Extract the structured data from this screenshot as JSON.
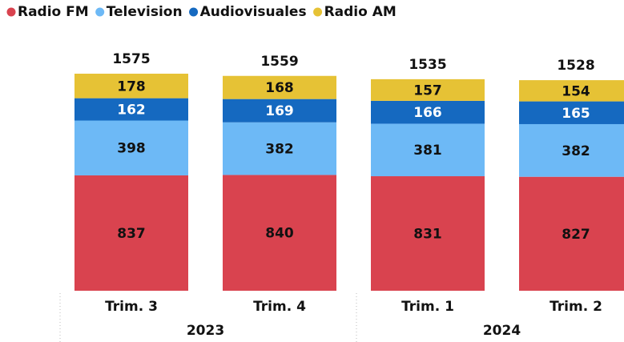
{
  "chart_data": {
    "type": "stacked_bar",
    "categories": [
      "Trim. 3",
      "Trim. 4",
      "Trim. 1",
      "Trim. 2"
    ],
    "groups": [
      "2023",
      "2024"
    ],
    "series": [
      {
        "name": "Radio FM",
        "color": "#d9434f",
        "values": [
          837,
          840,
          831,
          827
        ]
      },
      {
        "name": "Television",
        "color": "#6db9f6",
        "values": [
          398,
          382,
          381,
          382
        ]
      },
      {
        "name": "Audiovisuales",
        "color": "#1569c0",
        "values": [
          162,
          169,
          166,
          165
        ]
      },
      {
        "name": "Radio AM",
        "color": "#e6c235",
        "values": [
          178,
          168,
          157,
          154
        ]
      }
    ],
    "totals": [
      1575,
      1559,
      1535,
      1528
    ],
    "legend": "top-left"
  }
}
